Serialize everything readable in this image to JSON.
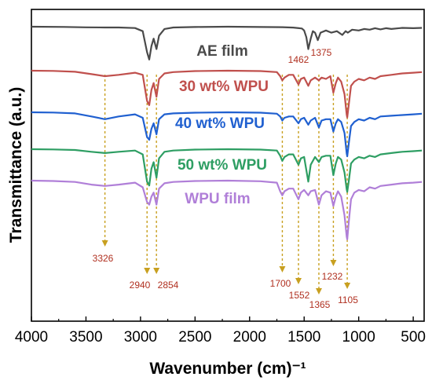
{
  "chart_data": {
    "type": "line",
    "title": "",
    "xlabel": "Wavenumber (cm)⁻¹",
    "ylabel": "Transmittance (a.u.)",
    "xlim": [
      4000,
      400
    ],
    "x_reversed": true,
    "x_ticks": [
      4000,
      3500,
      3000,
      2500,
      2000,
      1500,
      1000,
      500
    ],
    "y_tick_labels": "none",
    "grid": false,
    "series": [
      {
        "name": "AE film",
        "color": "#4a4a4a",
        "baseline": 0.0,
        "points": [
          [
            4000,
            0
          ],
          [
            3700,
            0.15
          ],
          [
            3500,
            0.4
          ],
          [
            3326,
            0.55
          ],
          [
            3200,
            0.5
          ],
          [
            3050,
            0.9
          ],
          [
            2980,
            3
          ],
          [
            2940,
            17
          ],
          [
            2920,
            22
          ],
          [
            2900,
            13
          ],
          [
            2880,
            8
          ],
          [
            2854,
            15
          ],
          [
            2830,
            6
          ],
          [
            2780,
            1.5
          ],
          [
            2700,
            0.5
          ],
          [
            2500,
            0.2
          ],
          [
            2200,
            0
          ],
          [
            1900,
            0.2
          ],
          [
            1700,
            0.3
          ],
          [
            1600,
            0.6
          ],
          [
            1520,
            1.2
          ],
          [
            1500,
            2.5
          ],
          [
            1480,
            7
          ],
          [
            1462,
            15
          ],
          [
            1440,
            8
          ],
          [
            1420,
            3
          ],
          [
            1400,
            4
          ],
          [
            1375,
            9
          ],
          [
            1350,
            4
          ],
          [
            1300,
            2.5
          ],
          [
            1250,
            4
          ],
          [
            1200,
            3
          ],
          [
            1150,
            5.5
          ],
          [
            1120,
            3
          ],
          [
            1100,
            4
          ],
          [
            1060,
            2
          ],
          [
            1000,
            2.5
          ],
          [
            950,
            1.5
          ],
          [
            900,
            2
          ],
          [
            850,
            1
          ],
          [
            800,
            1.8
          ],
          [
            750,
            1
          ],
          [
            700,
            1.5
          ],
          [
            600,
            0.8
          ],
          [
            500,
            1
          ],
          [
            420,
            0.8
          ]
        ]
      },
      {
        "name": "30 wt% WPU",
        "color": "#c0504d",
        "baseline": 0.0,
        "points": [
          [
            4000,
            0
          ],
          [
            3800,
            0.2
          ],
          [
            3600,
            0.8
          ],
          [
            3450,
            2.5
          ],
          [
            3326,
            4
          ],
          [
            3200,
            3
          ],
          [
            3050,
            1.5
          ],
          [
            2980,
            3
          ],
          [
            2940,
            22
          ],
          [
            2920,
            25
          ],
          [
            2900,
            14
          ],
          [
            2880,
            9
          ],
          [
            2854,
            19
          ],
          [
            2830,
            6
          ],
          [
            2780,
            2
          ],
          [
            2700,
            1
          ],
          [
            2500,
            0.3
          ],
          [
            2200,
            0
          ],
          [
            1900,
            0.3
          ],
          [
            1750,
            1
          ],
          [
            1720,
            4
          ],
          [
            1700,
            7
          ],
          [
            1680,
            5
          ],
          [
            1640,
            3
          ],
          [
            1600,
            3
          ],
          [
            1552,
            10
          ],
          [
            1530,
            6
          ],
          [
            1500,
            5
          ],
          [
            1462,
            11
          ],
          [
            1440,
            7
          ],
          [
            1400,
            5
          ],
          [
            1365,
            7
          ],
          [
            1340,
            5
          ],
          [
            1300,
            6
          ],
          [
            1260,
            4
          ],
          [
            1232,
            16
          ],
          [
            1210,
            9
          ],
          [
            1190,
            5
          ],
          [
            1160,
            8
          ],
          [
            1130,
            17
          ],
          [
            1110,
            32
          ],
          [
            1105,
            34
          ],
          [
            1090,
            24
          ],
          [
            1070,
            11
          ],
          [
            1040,
            8
          ],
          [
            1000,
            6
          ],
          [
            950,
            7
          ],
          [
            900,
            5
          ],
          [
            850,
            6
          ],
          [
            800,
            4
          ],
          [
            700,
            3
          ],
          [
            600,
            2
          ],
          [
            500,
            1.5
          ],
          [
            420,
            1
          ]
        ]
      },
      {
        "name": "40 wt% WPU",
        "color": "#2060d0",
        "baseline": 0.0,
        "points": [
          [
            4000,
            0
          ],
          [
            3800,
            0.2
          ],
          [
            3600,
            0.8
          ],
          [
            3450,
            3
          ],
          [
            3326,
            5
          ],
          [
            3200,
            3
          ],
          [
            3050,
            1.5
          ],
          [
            2980,
            4
          ],
          [
            2940,
            18
          ],
          [
            2920,
            20
          ],
          [
            2900,
            12
          ],
          [
            2880,
            8
          ],
          [
            2854,
            16
          ],
          [
            2830,
            5
          ],
          [
            2780,
            1.5
          ],
          [
            2700,
            0.8
          ],
          [
            2500,
            0.3
          ],
          [
            2200,
            0
          ],
          [
            1900,
            0.3
          ],
          [
            1750,
            1
          ],
          [
            1720,
            3
          ],
          [
            1700,
            6
          ],
          [
            1680,
            4
          ],
          [
            1640,
            3
          ],
          [
            1600,
            3
          ],
          [
            1552,
            8
          ],
          [
            1530,
            5
          ],
          [
            1500,
            4
          ],
          [
            1462,
            9
          ],
          [
            1440,
            6
          ],
          [
            1400,
            4
          ],
          [
            1365,
            11
          ],
          [
            1340,
            6
          ],
          [
            1300,
            5
          ],
          [
            1260,
            5
          ],
          [
            1232,
            14
          ],
          [
            1210,
            8
          ],
          [
            1190,
            5
          ],
          [
            1160,
            7
          ],
          [
            1130,
            15
          ],
          [
            1110,
            30
          ],
          [
            1105,
            32
          ],
          [
            1090,
            22
          ],
          [
            1070,
            10
          ],
          [
            1040,
            7
          ],
          [
            1000,
            5
          ],
          [
            950,
            6
          ],
          [
            900,
            4
          ],
          [
            850,
            5
          ],
          [
            800,
            3
          ],
          [
            700,
            2.5
          ],
          [
            600,
            2
          ],
          [
            500,
            1.5
          ],
          [
            420,
            1
          ]
        ]
      },
      {
        "name": "50 wt% WPU",
        "color": "#2e9e63",
        "baseline": 0.0,
        "points": [
          [
            4000,
            0
          ],
          [
            3800,
            0.2
          ],
          [
            3600,
            0.6
          ],
          [
            3450,
            2
          ],
          [
            3326,
            3
          ],
          [
            3200,
            2
          ],
          [
            3050,
            1
          ],
          [
            2980,
            4
          ],
          [
            2940,
            25
          ],
          [
            2920,
            28
          ],
          [
            2900,
            15
          ],
          [
            2880,
            10
          ],
          [
            2854,
            22
          ],
          [
            2830,
            7
          ],
          [
            2780,
            2
          ],
          [
            2700,
            1
          ],
          [
            2500,
            0.3
          ],
          [
            2200,
            0
          ],
          [
            1900,
            0.3
          ],
          [
            1750,
            1
          ],
          [
            1720,
            5
          ],
          [
            1700,
            9
          ],
          [
            1680,
            6
          ],
          [
            1640,
            4
          ],
          [
            1600,
            4
          ],
          [
            1552,
            12
          ],
          [
            1530,
            7
          ],
          [
            1500,
            6
          ],
          [
            1462,
            25
          ],
          [
            1440,
            12
          ],
          [
            1400,
            6
          ],
          [
            1365,
            10
          ],
          [
            1340,
            6
          ],
          [
            1300,
            5
          ],
          [
            1260,
            5
          ],
          [
            1232,
            20
          ],
          [
            1210,
            11
          ],
          [
            1190,
            6
          ],
          [
            1160,
            8
          ],
          [
            1130,
            18
          ],
          [
            1110,
            31
          ],
          [
            1105,
            33
          ],
          [
            1090,
            24
          ],
          [
            1070,
            11
          ],
          [
            1040,
            8
          ],
          [
            1000,
            6
          ],
          [
            950,
            7
          ],
          [
            900,
            5
          ],
          [
            850,
            6
          ],
          [
            800,
            4
          ],
          [
            700,
            3
          ],
          [
            600,
            2
          ],
          [
            500,
            1.5
          ],
          [
            420,
            1
          ]
        ]
      },
      {
        "name": "WPU film",
        "color": "#b07fd8",
        "baseline": 0.0,
        "points": [
          [
            4000,
            0
          ],
          [
            3800,
            0.3
          ],
          [
            3600,
            1
          ],
          [
            3450,
            3
          ],
          [
            3326,
            4
          ],
          [
            3200,
            3
          ],
          [
            3050,
            1.5
          ],
          [
            2980,
            5
          ],
          [
            2940,
            16
          ],
          [
            2920,
            18
          ],
          [
            2900,
            12
          ],
          [
            2880,
            9
          ],
          [
            2854,
            18
          ],
          [
            2830,
            6
          ],
          [
            2780,
            2
          ],
          [
            2700,
            1
          ],
          [
            2500,
            0.3
          ],
          [
            2200,
            0
          ],
          [
            1900,
            0.5
          ],
          [
            1750,
            1.5
          ],
          [
            1720,
            8
          ],
          [
            1700,
            11
          ],
          [
            1680,
            8
          ],
          [
            1640,
            6
          ],
          [
            1600,
            6
          ],
          [
            1552,
            14
          ],
          [
            1530,
            9
          ],
          [
            1500,
            7
          ],
          [
            1462,
            11
          ],
          [
            1440,
            8
          ],
          [
            1400,
            7
          ],
          [
            1365,
            18
          ],
          [
            1340,
            11
          ],
          [
            1300,
            8
          ],
          [
            1260,
            9
          ],
          [
            1232,
            19
          ],
          [
            1210,
            12
          ],
          [
            1190,
            8
          ],
          [
            1160,
            12
          ],
          [
            1130,
            26
          ],
          [
            1110,
            42
          ],
          [
            1105,
            44
          ],
          [
            1090,
            30
          ],
          [
            1070,
            14
          ],
          [
            1040,
            9
          ],
          [
            1000,
            7
          ],
          [
            950,
            8
          ],
          [
            900,
            5
          ],
          [
            850,
            6
          ],
          [
            800,
            4
          ],
          [
            700,
            3
          ],
          [
            600,
            2
          ],
          [
            500,
            1.5
          ],
          [
            420,
            1
          ]
        ]
      }
    ],
    "peak_annotations": [
      {
        "label": "3326",
        "x": 3326
      },
      {
        "label": "2940",
        "x": 2940
      },
      {
        "label": "2854",
        "x": 2854
      },
      {
        "label": "1700",
        "x": 1700
      },
      {
        "label": "1552",
        "x": 1552
      },
      {
        "label": "1365",
        "x": 1365
      },
      {
        "label": "1232",
        "x": 1232
      },
      {
        "label": "1105",
        "x": 1105
      },
      {
        "label": "1462",
        "x": 1462
      },
      {
        "label": "1375",
        "x": 1375
      }
    ],
    "annotation_color": "#c8a020"
  }
}
